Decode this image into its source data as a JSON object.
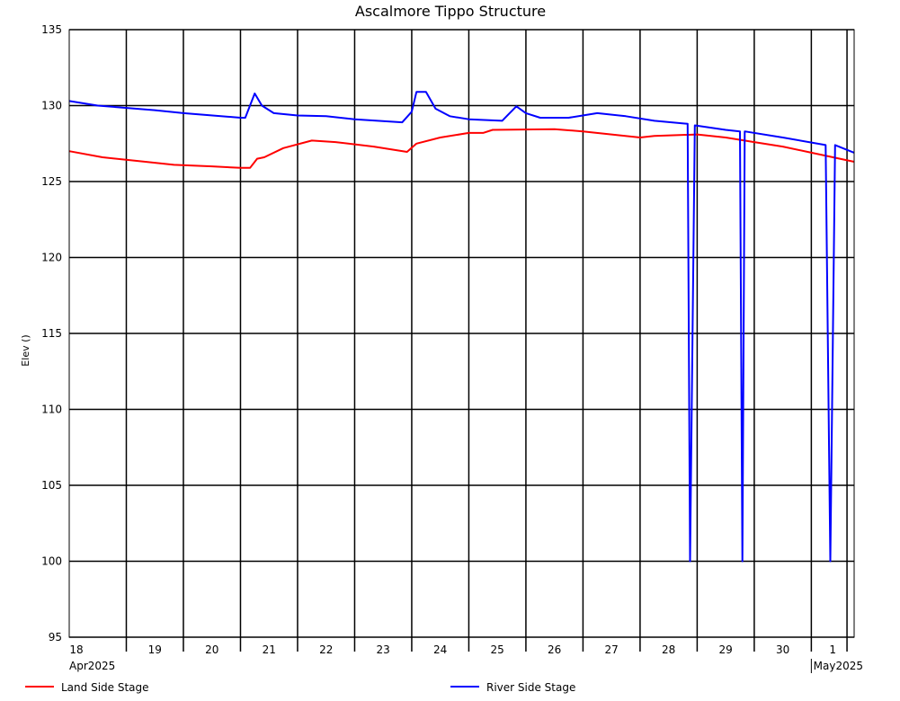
{
  "chart_data": {
    "type": "line",
    "title": "Ascalmore Tippo Structure",
    "ylabel": "Elev ()",
    "xlabel": "",
    "ylim": [
      95,
      135
    ],
    "y_ticks": [
      95,
      100,
      105,
      110,
      115,
      120,
      125,
      130,
      135
    ],
    "x_range": [
      "2025-04-18T00:00",
      "2025-05-01T18:00"
    ],
    "day_ticks": [
      {
        "label": "18",
        "date": "2025-04-18"
      },
      {
        "label": "19",
        "date": "2025-04-19"
      },
      {
        "label": "20",
        "date": "2025-04-20"
      },
      {
        "label": "21",
        "date": "2025-04-21"
      },
      {
        "label": "22",
        "date": "2025-04-22"
      },
      {
        "label": "23",
        "date": "2025-04-23"
      },
      {
        "label": "24",
        "date": "2025-04-24"
      },
      {
        "label": "25",
        "date": "2025-04-25"
      },
      {
        "label": "26",
        "date": "2025-04-26"
      },
      {
        "label": "27",
        "date": "2025-04-27"
      },
      {
        "label": "28",
        "date": "2025-04-28"
      },
      {
        "label": "29",
        "date": "2025-04-29"
      },
      {
        "label": "30",
        "date": "2025-04-30"
      },
      {
        "label": "1",
        "date": "2025-05-01"
      }
    ],
    "month_labels": [
      {
        "label": "Apr2025",
        "date": "2025-04-18"
      },
      {
        "label": "May2025",
        "date": "2025-05-01"
      }
    ],
    "grid": true,
    "legend_position": "bottom",
    "series": [
      {
        "name": "Land Side Stage",
        "color": "#ff0000",
        "points": [
          [
            "2025-04-18T00:00",
            127.0
          ],
          [
            "2025-04-18T14:00",
            126.6
          ],
          [
            "2025-04-19T08:00",
            126.3
          ],
          [
            "2025-04-19T20:00",
            126.1
          ],
          [
            "2025-04-20T12:00",
            126.0
          ],
          [
            "2025-04-21T00:00",
            125.9
          ],
          [
            "2025-04-21T04:00",
            125.9
          ],
          [
            "2025-04-21T07:00",
            126.5
          ],
          [
            "2025-04-21T10:00",
            126.6
          ],
          [
            "2025-04-21T18:00",
            127.2
          ],
          [
            "2025-04-22T06:00",
            127.7
          ],
          [
            "2025-04-22T16:00",
            127.6
          ],
          [
            "2025-04-23T08:00",
            127.3
          ],
          [
            "2025-04-23T22:00",
            126.95
          ],
          [
            "2025-04-24T02:00",
            127.5
          ],
          [
            "2025-04-24T12:00",
            127.9
          ],
          [
            "2025-04-25T00:00",
            128.2
          ],
          [
            "2025-04-25T06:00",
            128.2
          ],
          [
            "2025-04-25T10:00",
            128.4
          ],
          [
            "2025-04-26T12:00",
            128.45
          ],
          [
            "2025-04-27T00:00",
            128.3
          ],
          [
            "2025-04-28T00:00",
            127.9
          ],
          [
            "2025-04-28T06:00",
            128.0
          ],
          [
            "2025-04-29T00:00",
            128.1
          ],
          [
            "2025-04-29T12:00",
            127.9
          ],
          [
            "2025-04-30T00:00",
            127.6
          ],
          [
            "2025-04-30T12:00",
            127.3
          ],
          [
            "2025-05-01T00:00",
            126.9
          ],
          [
            "2025-05-01T12:00",
            126.5
          ],
          [
            "2025-05-01T18:00",
            126.3
          ]
        ]
      },
      {
        "name": "River Side Stage",
        "color": "#0000ff",
        "points": [
          [
            "2025-04-18T00:00",
            130.3
          ],
          [
            "2025-04-18T12:00",
            130.0
          ],
          [
            "2025-04-19T12:00",
            129.7
          ],
          [
            "2025-04-20T00:00",
            129.5
          ],
          [
            "2025-04-21T00:00",
            129.2
          ],
          [
            "2025-04-21T02:00",
            129.2
          ],
          [
            "2025-04-21T06:00",
            130.8
          ],
          [
            "2025-04-21T09:00",
            130.0
          ],
          [
            "2025-04-21T14:00",
            129.5
          ],
          [
            "2025-04-22T00:00",
            129.35
          ],
          [
            "2025-04-22T12:00",
            129.3
          ],
          [
            "2025-04-23T00:00",
            129.1
          ],
          [
            "2025-04-23T20:00",
            128.9
          ],
          [
            "2025-04-24T00:00",
            129.6
          ],
          [
            "2025-04-24T02:00",
            130.9
          ],
          [
            "2025-04-24T06:00",
            130.9
          ],
          [
            "2025-04-24T10:00",
            129.8
          ],
          [
            "2025-04-24T16:00",
            129.3
          ],
          [
            "2025-04-25T00:00",
            129.1
          ],
          [
            "2025-04-25T14:00",
            129.0
          ],
          [
            "2025-04-25T20:00",
            129.95
          ],
          [
            "2025-04-26T00:00",
            129.5
          ],
          [
            "2025-04-26T06:00",
            129.2
          ],
          [
            "2025-04-26T18:00",
            129.2
          ],
          [
            "2025-04-27T06:00",
            129.5
          ],
          [
            "2025-04-27T18:00",
            129.3
          ],
          [
            "2025-04-28T06:00",
            129.0
          ],
          [
            "2025-04-28T20:00",
            128.8
          ],
          [
            "2025-04-28T21:00",
            100.0
          ],
          [
            "2025-04-28T23:00",
            128.7
          ],
          [
            "2025-04-29T12:00",
            128.4
          ],
          [
            "2025-04-29T18:00",
            128.3
          ],
          [
            "2025-04-29T19:00",
            100.0
          ],
          [
            "2025-04-29T20:00",
            128.3
          ],
          [
            "2025-04-30T12:00",
            127.9
          ],
          [
            "2025-05-01T06:00",
            127.4
          ],
          [
            "2025-05-01T08:00",
            100.0
          ],
          [
            "2025-05-01T10:00",
            127.4
          ],
          [
            "2025-05-01T18:00",
            126.9
          ]
        ]
      }
    ]
  }
}
